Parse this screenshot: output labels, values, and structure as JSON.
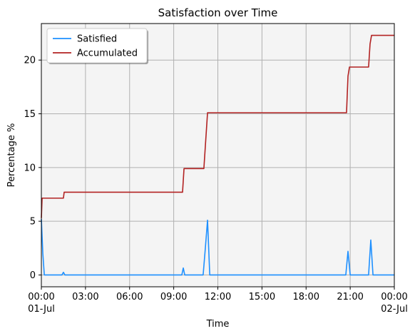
{
  "chart_data": {
    "type": "line",
    "title": "Satisfaction over Time",
    "xlabel": "Time",
    "ylabel": "Percentage %",
    "xlim": [
      0,
      24
    ],
    "ylim": [
      -1.1,
      23.4
    ],
    "grid": true,
    "legend_position": "top-left",
    "x_ticks": [
      {
        "value": 0,
        "label": "00:00",
        "sublabel": "01-Jul"
      },
      {
        "value": 3,
        "label": "03:00",
        "sublabel": ""
      },
      {
        "value": 6,
        "label": "06:00",
        "sublabel": ""
      },
      {
        "value": 9,
        "label": "09:00",
        "sublabel": ""
      },
      {
        "value": 12,
        "label": "12:00",
        "sublabel": ""
      },
      {
        "value": 15,
        "label": "15:00",
        "sublabel": ""
      },
      {
        "value": 18,
        "label": "18:00",
        "sublabel": ""
      },
      {
        "value": 21,
        "label": "21:00",
        "sublabel": ""
      },
      {
        "value": 24,
        "label": "00:00",
        "sublabel": "02-Jul"
      }
    ],
    "y_ticks": [
      {
        "value": 0,
        "label": "0"
      },
      {
        "value": 5,
        "label": "5"
      },
      {
        "value": 10,
        "label": "10"
      },
      {
        "value": 15,
        "label": "15"
      },
      {
        "value": 20,
        "label": "20"
      }
    ],
    "series": [
      {
        "name": "Satisfied",
        "color": "#1e90ff",
        "points": [
          [
            0,
            5.2
          ],
          [
            0.1,
            2.0
          ],
          [
            0.2,
            0
          ],
          [
            1.4,
            0
          ],
          [
            1.5,
            0.25
          ],
          [
            1.6,
            0
          ],
          [
            9.55,
            0
          ],
          [
            9.65,
            0.65
          ],
          [
            9.75,
            0
          ],
          [
            11.0,
            0
          ],
          [
            11.15,
            2.5
          ],
          [
            11.3,
            5.1
          ],
          [
            11.45,
            0
          ],
          [
            20.7,
            0
          ],
          [
            20.85,
            2.2
          ],
          [
            21.0,
            0
          ],
          [
            22.25,
            0
          ],
          [
            22.4,
            3.25
          ],
          [
            22.55,
            0
          ],
          [
            24,
            0
          ]
        ]
      },
      {
        "name": "Accumulated",
        "color": "#b22222",
        "points": [
          [
            0,
            5.3
          ],
          [
            0.05,
            7.15
          ],
          [
            1.5,
            7.15
          ],
          [
            1.55,
            7.7
          ],
          [
            9.6,
            7.7
          ],
          [
            9.7,
            9.9
          ],
          [
            11.05,
            9.9
          ],
          [
            11.3,
            15.1
          ],
          [
            20.75,
            15.1
          ],
          [
            20.85,
            18.5
          ],
          [
            20.95,
            19.35
          ],
          [
            22.25,
            19.35
          ],
          [
            22.35,
            21.5
          ],
          [
            22.45,
            22.3
          ],
          [
            24,
            22.3
          ]
        ]
      }
    ]
  }
}
